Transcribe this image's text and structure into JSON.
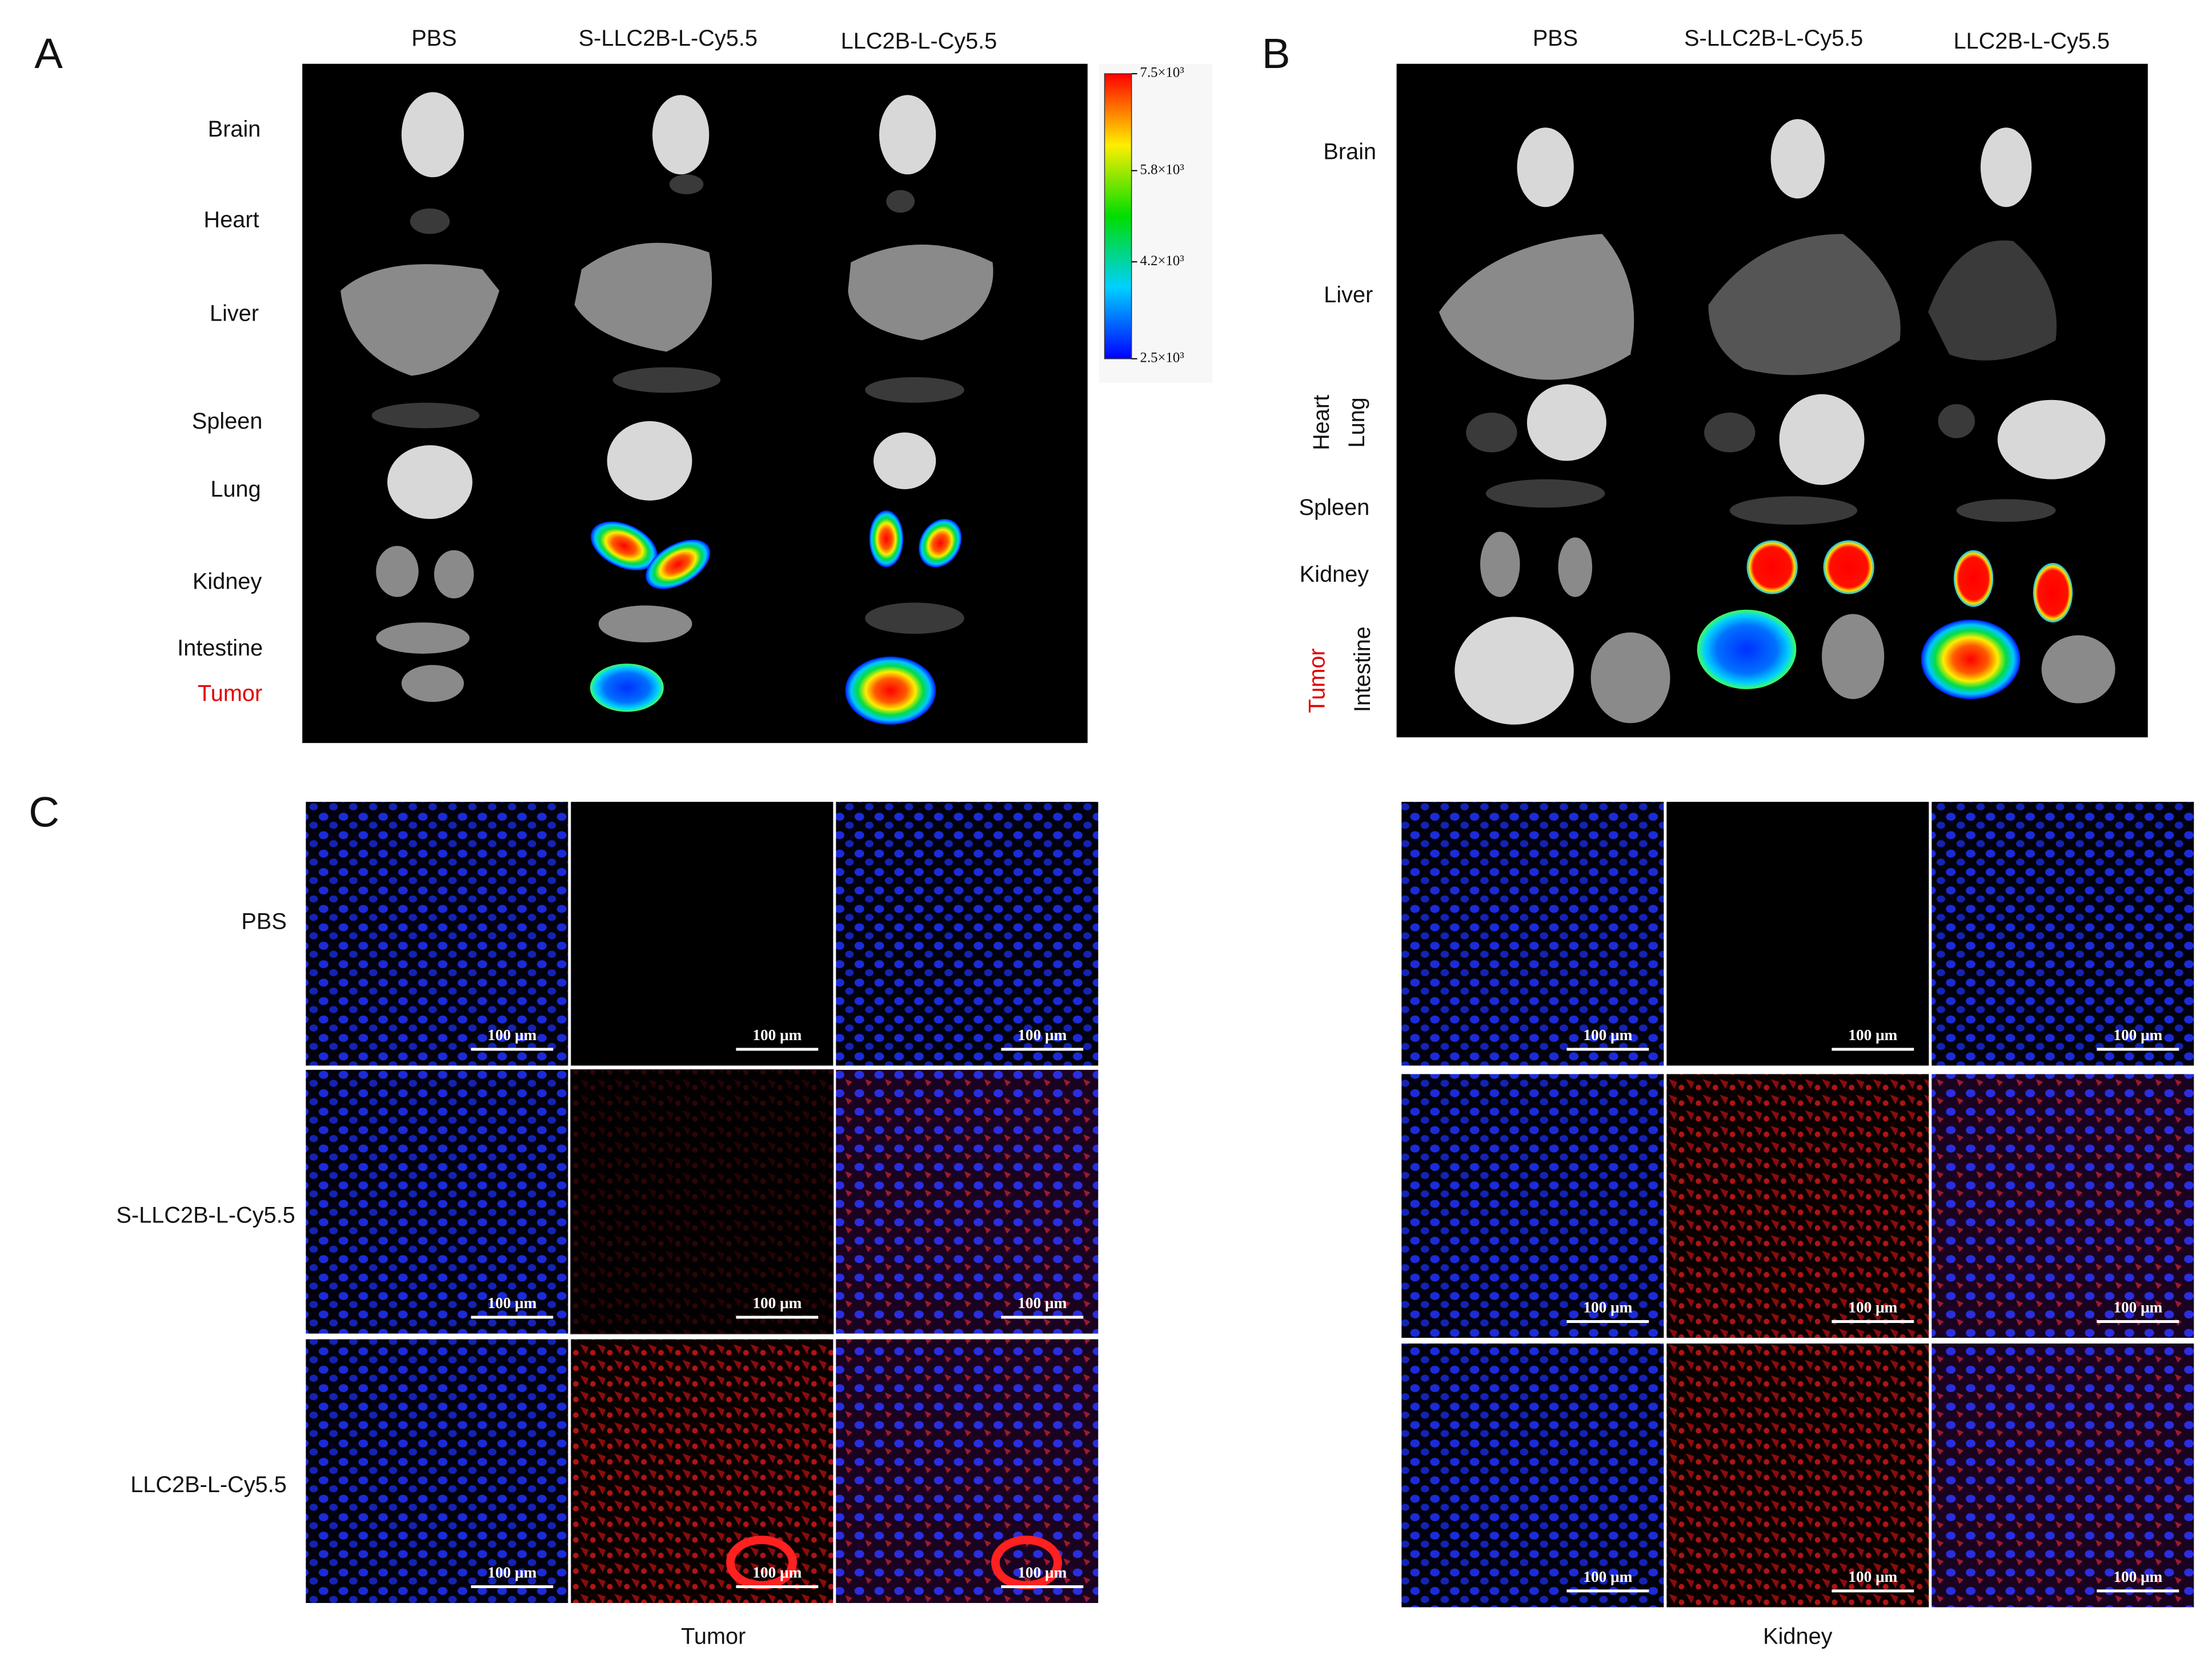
{
  "panel_a": {
    "label": "A",
    "columns": [
      "PBS",
      "S-LLC2B-L-Cy5.5",
      "LLC2B-L-Cy5.5"
    ],
    "rows": [
      "Brain",
      "Heart",
      "Liver",
      "Spleen",
      "Lung",
      "Kidney",
      "Intestine",
      "Tumor"
    ],
    "colorbar": {
      "lim": [
        2500,
        7500
      ],
      "ticks": [
        {
          "value": 7500,
          "label": "7.5×10³"
        },
        {
          "value": 5800,
          "label": "5.8×10³"
        },
        {
          "value": 4200,
          "label": "4.2×10³"
        },
        {
          "value": 2500,
          "label": "2.5×10³"
        }
      ]
    }
  },
  "panel_b": {
    "label": "B",
    "columns": [
      "PBS",
      "S-LLC2B-L-Cy5.5",
      "LLC2B-L-Cy5.5"
    ],
    "rows": [
      "Brain",
      "Liver",
      "Heart",
      "Lung",
      "Spleen",
      "Kidney",
      "Tumor",
      "Intestine"
    ]
  },
  "panel_c": {
    "label": "C",
    "rows": [
      "PBS",
      "S-LLC2B-L-Cy5.5",
      "LLC2B-L-Cy5.5"
    ],
    "scale_bar": "100 μm",
    "tissues": [
      "Tumor",
      "Kidney"
    ]
  }
}
